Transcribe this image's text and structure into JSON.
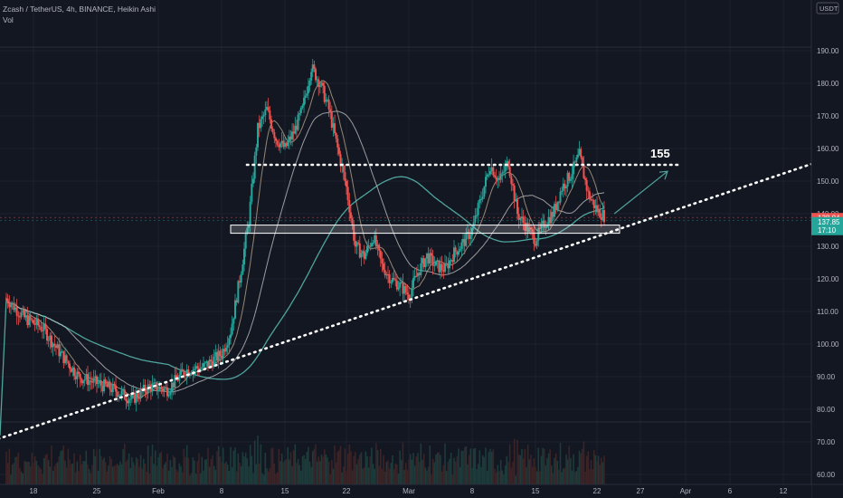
{
  "header": {
    "symbol_line": "Zcash / TetherUS, 4h, BINANCE, Heikin Ashi",
    "volume_label": "Vol"
  },
  "currency_badge": "USDT",
  "price_axis": {
    "ticks": [
      "190.00",
      "180.00",
      "170.00",
      "160.00",
      "150.00",
      "140.00",
      "130.00",
      "120.00",
      "110.00",
      "100.00",
      "90.00",
      "80.00",
      "70.00",
      "60.00"
    ]
  },
  "time_axis": {
    "ticks": [
      "18",
      "25",
      "Feb",
      "8",
      "15",
      "22",
      "Mar",
      "8",
      "15",
      "22",
      "27",
      "Apr",
      "6",
      "12"
    ]
  },
  "price_labels": {
    "red_price": "138.84",
    "green_price": "137.85",
    "green_timer": "17:10"
  },
  "annotation": {
    "target_label": "155"
  },
  "colors": {
    "background": "#131722",
    "up": "#26a69a",
    "down": "#ef5350",
    "ma_fast": "#b5a48a",
    "ma_slow": "#c9c9c9",
    "ma_long": "#4fa49d",
    "trendline": "#ffffff",
    "arrow": "#4fa49d"
  },
  "chart_data": {
    "type": "candlestick",
    "title": "Zcash / TetherUS, 4h, BINANCE, Heikin Ashi",
    "y_unit": "USDT",
    "ylim": [
      58,
      197
    ],
    "series": [
      {
        "name": "Price",
        "points": [
          [
            "Jan 15",
            114
          ],
          [
            "Jan 17",
            108
          ],
          [
            "Jan 19",
            105
          ],
          [
            "Jan 21",
            97
          ],
          [
            "Jan 23",
            90
          ],
          [
            "Jan 25",
            88
          ],
          [
            "Jan 27",
            86
          ],
          [
            "Jan 29",
            83
          ],
          [
            "Jan 31",
            87
          ],
          [
            "Feb 2",
            86
          ],
          [
            "Feb 4",
            92
          ],
          [
            "Feb 6",
            93
          ],
          [
            "Feb 8",
            97
          ],
          [
            "Feb 9",
            104
          ],
          [
            "Feb 10",
            120
          ],
          [
            "Feb 11",
            138
          ],
          [
            "Feb 12",
            166
          ],
          [
            "Feb 13",
            172
          ],
          [
            "Feb 14",
            163
          ],
          [
            "Feb 15",
            160
          ],
          [
            "Feb 16",
            165
          ],
          [
            "Feb 17",
            172
          ],
          [
            "Feb 18",
            185
          ],
          [
            "Feb 19",
            180
          ],
          [
            "Feb 20",
            172
          ],
          [
            "Feb 21",
            160
          ],
          [
            "Feb 22",
            148
          ],
          [
            "Feb 23",
            130
          ],
          [
            "Feb 24",
            127
          ],
          [
            "Feb 25",
            133
          ],
          [
            "Feb 26",
            124
          ],
          [
            "Feb 27",
            120
          ],
          [
            "Feb 28",
            118
          ],
          [
            "Mar 1",
            115
          ],
          [
            "Mar 2",
            122
          ],
          [
            "Mar 3",
            127
          ],
          [
            "Mar 4",
            124
          ],
          [
            "Mar 5",
            123
          ],
          [
            "Mar 6",
            128
          ],
          [
            "Mar 7",
            131
          ],
          [
            "Mar 8",
            135
          ],
          [
            "Mar 9",
            145
          ],
          [
            "Mar 10",
            155
          ],
          [
            "Mar 11",
            150
          ],
          [
            "Mar 12",
            156
          ],
          [
            "Mar 13",
            140
          ],
          [
            "Mar 14",
            136
          ],
          [
            "Mar 15",
            132
          ],
          [
            "Mar 16",
            137
          ],
          [
            "Mar 17",
            140
          ],
          [
            "Mar 18",
            148
          ],
          [
            "Mar 19",
            152
          ],
          [
            "Mar 20",
            158
          ],
          [
            "Mar 21",
            146
          ],
          [
            "Mar 22",
            141
          ],
          [
            "Mar 23",
            139
          ]
        ]
      }
    ],
    "levels": [
      {
        "type": "horizontal-dotted",
        "value": 155
      },
      {
        "type": "zone",
        "from": 134,
        "to": 136.5
      }
    ],
    "trendline": {
      "from": [
        "Jan 11",
        68
      ],
      "to": [
        "Apr 16",
        156
      ]
    },
    "projection_arrow": {
      "from": [
        "Mar 24",
        140
      ],
      "to": [
        "Mar 30",
        153
      ]
    },
    "last_prices": {
      "red": 138.84,
      "green": 137.85
    },
    "grid": true
  }
}
